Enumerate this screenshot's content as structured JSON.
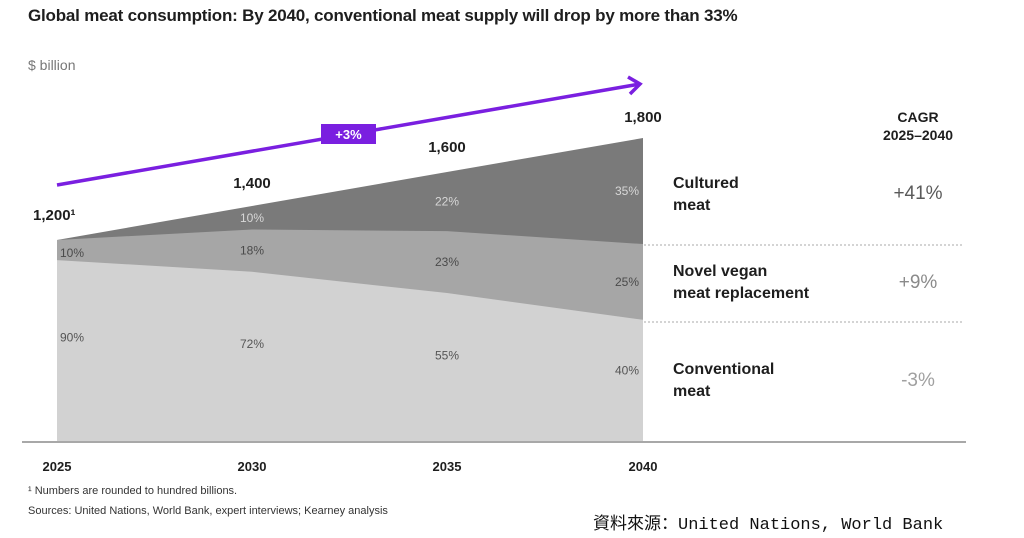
{
  "chart_data": {
    "type": "area",
    "title": "Global meat consumption: By 2040, conventional meat supply will drop by more than 33%",
    "ylabel": "$ billion",
    "xlabel": "",
    "categories": [
      "2025",
      "2030",
      "2035",
      "2040"
    ],
    "totals": [
      1200,
      1400,
      1600,
      1800
    ],
    "total_labels": [
      "1,200¹",
      "1,400",
      "1,600",
      "1,800"
    ],
    "series": [
      {
        "name": "Conventional meat",
        "values_pct": [
          90,
          72,
          55,
          40
        ],
        "labels": [
          "90%",
          "72%",
          "55%",
          "40%"
        ],
        "color": "#d2d2d2",
        "label_color": "#555555",
        "cagr": "-3%",
        "cagr_color": "#a0a0a0"
      },
      {
        "name": "Novel vegan meat replacement",
        "values_pct": [
          10,
          18,
          23,
          25
        ],
        "labels": [
          "10%",
          "18%",
          "23%",
          "25%"
        ],
        "color": "#a6a6a6",
        "label_color": "#4a4a4a",
        "cagr": "+9%",
        "cagr_color": "#8a8a8a"
      },
      {
        "name": "Cultured meat",
        "values_pct": [
          0,
          10,
          22,
          35
        ],
        "labels": [
          "",
          "10%",
          "22%",
          "35%"
        ],
        "color": "#7a7a7a",
        "label_color": "#d8d8d8",
        "cagr": "+41%",
        "cagr_color": "#5a5a5a"
      }
    ],
    "legend_lines": [
      [
        "Cultured",
        "meat"
      ],
      [
        "Novel vegan",
        "meat replacement"
      ],
      [
        "Conventional",
        "meat"
      ]
    ],
    "cagr_header": [
      "CAGR",
      "2025–2040"
    ],
    "growth_arrow": {
      "label": "+3%",
      "color": "#7a1fe0"
    },
    "ylim": [
      0,
      1800
    ],
    "grid": false,
    "legend_position": "right"
  },
  "footnotes": {
    "note1": "¹ Numbers are rounded to hundred billions.",
    "note2": "Sources: United Nations, World Bank, expert interviews; Kearney analysis"
  },
  "source_cn": "資料來源：United Nations, World Bank"
}
